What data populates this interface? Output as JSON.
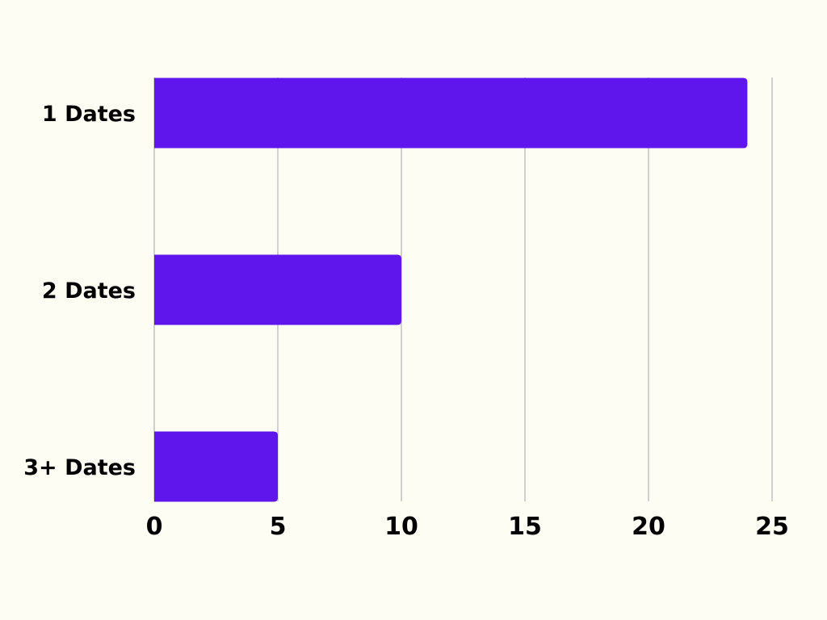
{
  "chart_data": {
    "type": "bar",
    "orientation": "horizontal",
    "categories": [
      "1 Dates",
      "2 Dates",
      "3+ Dates"
    ],
    "values": [
      24,
      10,
      5
    ],
    "xlim": [
      0,
      25
    ],
    "x_ticks": [
      "0",
      "5",
      "10",
      "15",
      "20",
      "25"
    ],
    "grid": true,
    "legend": false,
    "bar_color": "#5f16ec",
    "background_color": "#fdfdf4",
    "gridline_color": "#c2c2c2"
  }
}
